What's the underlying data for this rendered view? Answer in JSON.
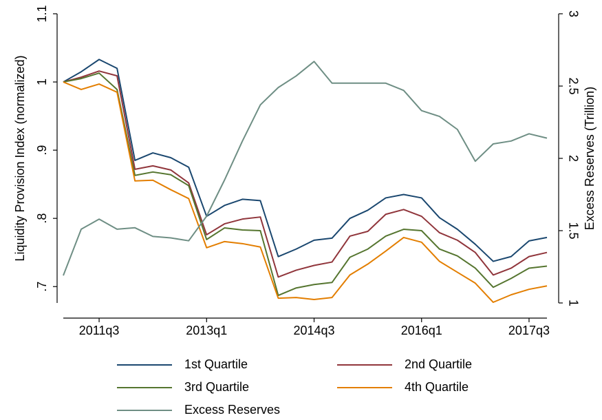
{
  "chart_data": {
    "type": "line",
    "ylabel": "Liquidity Provision Index (normalized)",
    "y2label": "Excess Reserves (Trillion)",
    "categories": [
      null,
      null,
      "2011q3",
      null,
      null,
      null,
      null,
      null,
      "2013q1",
      null,
      null,
      null,
      null,
      null,
      "2014q3",
      null,
      null,
      null,
      null,
      null,
      "2016q1",
      null,
      null,
      null,
      null,
      null,
      "2017q3",
      null
    ],
    "ylim": [
      0.676,
      1.1
    ],
    "yticks": [
      {
        "value": 0.7,
        "label": ".7"
      },
      {
        "value": 0.8,
        "label": ".8"
      },
      {
        "value": 0.9,
        "label": ".9"
      },
      1,
      1.1
    ],
    "y2lim": [
      1,
      3
    ],
    "y2ticks": [
      1,
      1.5,
      2,
      2.5,
      3
    ],
    "series": [
      {
        "name": "1st Quartile",
        "color": "#1a476f",
        "values": [
          1.0,
          1.015,
          1.033,
          1.02,
          0.885,
          0.896,
          0.889,
          0.875,
          0.803,
          0.819,
          0.828,
          0.826,
          0.744,
          0.755,
          0.768,
          0.771,
          0.8,
          0.812,
          0.83,
          0.835,
          0.83,
          0.801,
          0.784,
          0.762,
          0.737,
          0.744,
          0.767,
          0.772
        ]
      },
      {
        "name": "2nd Quartile",
        "color": "#90353b",
        "values": [
          1.0,
          1.007,
          1.016,
          1.009,
          0.872,
          0.877,
          0.871,
          0.852,
          0.776,
          0.792,
          0.799,
          0.802,
          0.714,
          0.724,
          0.731,
          0.736,
          0.774,
          0.781,
          0.806,
          0.813,
          0.803,
          0.779,
          0.768,
          0.75,
          0.717,
          0.727,
          0.744,
          0.75
        ]
      },
      {
        "name": "3rd Quartile",
        "color": "#55752f",
        "values": [
          1.0,
          1.005,
          1.013,
          0.989,
          0.863,
          0.868,
          0.864,
          0.848,
          0.769,
          0.786,
          0.783,
          0.782,
          0.687,
          0.698,
          0.703,
          0.706,
          0.743,
          0.755,
          0.774,
          0.784,
          0.782,
          0.755,
          0.745,
          0.727,
          0.699,
          0.712,
          0.727,
          0.73
        ]
      },
      {
        "name": "4th Quartile",
        "color": "#e37e00",
        "values": [
          1.0,
          0.989,
          0.997,
          0.985,
          0.855,
          0.856,
          0.842,
          0.829,
          0.757,
          0.766,
          0.763,
          0.758,
          0.683,
          0.684,
          0.681,
          0.684,
          0.717,
          0.733,
          0.752,
          0.772,
          0.765,
          0.737,
          0.721,
          0.705,
          0.677,
          0.688,
          0.696,
          0.701
        ]
      },
      {
        "name": "Excess Reserves",
        "color": "#6e8e84",
        "axis": "y2",
        "values": [
          1.19,
          1.51,
          1.58,
          1.51,
          1.52,
          1.46,
          1.45,
          1.43,
          1.6,
          1.85,
          2.12,
          2.37,
          2.49,
          2.57,
          2.67,
          2.52,
          2.52,
          2.52,
          2.52,
          2.47,
          2.33,
          2.29,
          2.2,
          1.98,
          2.1,
          2.12,
          2.17,
          2.14
        ]
      }
    ]
  }
}
